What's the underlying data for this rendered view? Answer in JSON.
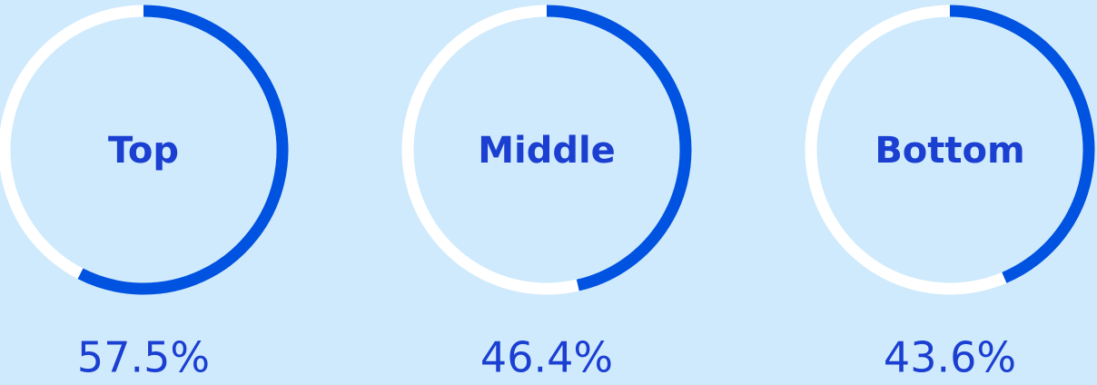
{
  "chart_data": {
    "type": "donut",
    "categories": [
      "Top",
      "Middle",
      "Bottom"
    ],
    "values": [
      57.5,
      46.4,
      43.6
    ],
    "value_labels": [
      "57.5%",
      "46.4%",
      "43.6%"
    ],
    "ylim": [
      0,
      100
    ],
    "color": "#0052e0",
    "track_color": "#ffffff"
  }
}
